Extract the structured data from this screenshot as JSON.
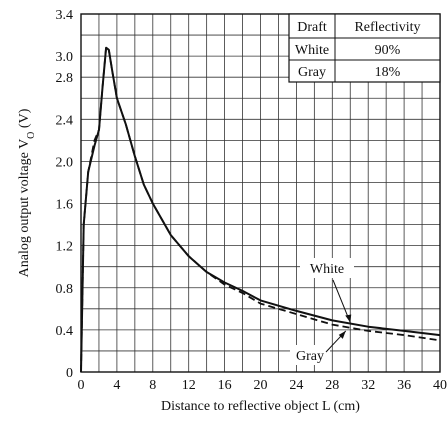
{
  "chart_data": {
    "type": "line",
    "xlabel": "Distance to reflective object L (cm)",
    "ylabel": "Analog output voltage V",
    "ylabel_sub": "O",
    "ylabel_unit": " (V)",
    "xlim": [
      0,
      40
    ],
    "ylim": [
      0,
      3.4
    ],
    "x_ticks": [
      0,
      4,
      8,
      12,
      16,
      20,
      24,
      28,
      32,
      36,
      40
    ],
    "x_tick_labels": [
      "0",
      "4",
      "8",
      "12",
      "16",
      "20",
      "24",
      "28",
      "32",
      "36",
      "40"
    ],
    "y_ticks": [
      0,
      0.4,
      0.8,
      1.2,
      1.6,
      2.0,
      2.4,
      2.8,
      3.0,
      3.4
    ],
    "y_tick_labels": [
      "0",
      "0.4",
      "0.8",
      "1.2",
      "1.6",
      "2.0",
      "2.4",
      "2.8",
      "3.0",
      "3.4"
    ],
    "grid": true,
    "legend_table": {
      "headers": [
        "Draft",
        "Reflectivity"
      ],
      "rows": [
        [
          "White",
          "90%"
        ],
        [
          "Gray",
          "18%"
        ]
      ]
    },
    "series": [
      {
        "name": "White",
        "style": "solid",
        "x": [
          0,
          0.3,
          0.8,
          1.5,
          2.0,
          2.4,
          2.8,
          3.1,
          3.5,
          4.0,
          5.0,
          6.0,
          7.0,
          8.0,
          10.0,
          12.0,
          14.0,
          16.0,
          18.0,
          20.0,
          24.0,
          28.0,
          32.0,
          36.0,
          40.0
        ],
        "y": [
          0,
          1.4,
          1.9,
          2.15,
          2.3,
          2.7,
          3.08,
          3.06,
          2.85,
          2.6,
          2.35,
          2.05,
          1.78,
          1.6,
          1.3,
          1.1,
          0.95,
          0.85,
          0.77,
          0.68,
          0.58,
          0.49,
          0.43,
          0.39,
          0.35
        ]
      },
      {
        "name": "Gray",
        "style": "dashed",
        "x": [
          0,
          0.3,
          0.8,
          1.5,
          2.0,
          2.4,
          2.8,
          3.1,
          3.5,
          4.0,
          5.0,
          6.0,
          7.0,
          8.0,
          10.0,
          12.0,
          14.0,
          16.0,
          18.0,
          20.0,
          24.0,
          28.0,
          32.0,
          36.0,
          40.0
        ],
        "y": [
          0,
          1.4,
          1.9,
          2.2,
          2.3,
          2.7,
          3.08,
          3.06,
          2.85,
          2.6,
          2.35,
          2.05,
          1.78,
          1.6,
          1.3,
          1.1,
          0.95,
          0.83,
          0.75,
          0.65,
          0.55,
          0.45,
          0.39,
          0.35,
          0.3
        ]
      }
    ],
    "annotations": [
      {
        "text": "White",
        "target_x": 30.0,
        "target_y": 0.47
      },
      {
        "text": "Gray",
        "target_x": 29.5,
        "target_y": 0.39
      }
    ],
    "colors": {
      "line": "#111111",
      "grid": "#333333",
      "background": "#ffffff"
    }
  }
}
